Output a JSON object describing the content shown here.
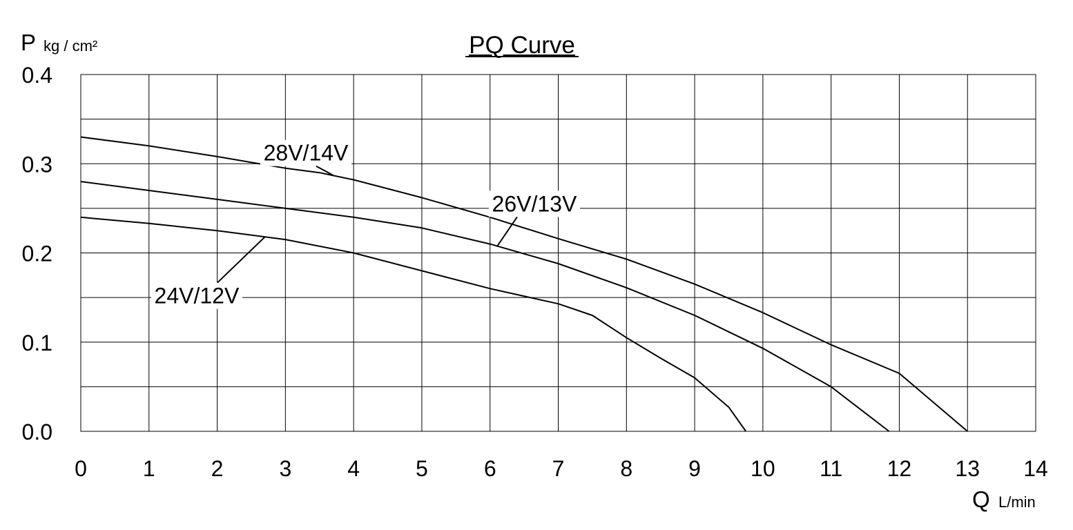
{
  "chart_data": {
    "type": "line",
    "title": "PQ Curve",
    "ylabel_symbol": "P",
    "ylabel_unit": "kg / cm²",
    "xlabel_symbol": "Q",
    "xlabel_unit": "L/min",
    "xlim": [
      0,
      14
    ],
    "ylim": [
      0,
      0.4
    ],
    "x_ticks": [
      "0",
      "1",
      "2",
      "3",
      "4",
      "5",
      "6",
      "7",
      "8",
      "9",
      "10",
      "11",
      "12",
      "13",
      "14"
    ],
    "y_ticks": [
      "0.0",
      "0.1",
      "0.2",
      "0.3",
      "0.4"
    ],
    "grid": true,
    "series": [
      {
        "name": "28V/14V",
        "x": [
          0,
          1,
          2,
          3,
          3.5,
          4,
          5,
          6,
          7,
          8,
          9,
          10,
          11,
          12,
          13
        ],
        "y": [
          0.33,
          0.32,
          0.308,
          0.295,
          0.29,
          0.282,
          0.262,
          0.24,
          0.216,
          0.193,
          0.165,
          0.133,
          0.097,
          0.065,
          0.0
        ]
      },
      {
        "name": "26V/13V",
        "x": [
          0,
          1,
          2,
          3,
          4,
          5,
          6,
          7,
          8,
          9,
          10,
          11,
          11.85
        ],
        "y": [
          0.28,
          0.27,
          0.26,
          0.25,
          0.24,
          0.228,
          0.21,
          0.188,
          0.161,
          0.13,
          0.093,
          0.05,
          0.0
        ]
      },
      {
        "name": "24V/12V",
        "x": [
          0,
          1,
          2,
          3,
          4,
          5,
          6,
          7,
          7.5,
          8,
          8.5,
          9,
          9.5,
          9.75
        ],
        "y": [
          0.24,
          0.233,
          0.225,
          0.215,
          0.2,
          0.18,
          0.16,
          0.143,
          0.13,
          0.105,
          0.082,
          0.06,
          0.027,
          0.0
        ]
      }
    ],
    "annotations": [
      {
        "text": "28V/14V",
        "label_x": 3.3,
        "label_y": 0.312,
        "point_x": 3.7,
        "point_y": 0.287
      },
      {
        "text": "26V/13V",
        "label_x": 6.65,
        "label_y": 0.255,
        "point_x": 6.1,
        "point_y": 0.207
      },
      {
        "text": "24V/12V",
        "label_x": 1.7,
        "label_y": 0.152,
        "point_x": 2.7,
        "point_y": 0.218
      }
    ]
  }
}
